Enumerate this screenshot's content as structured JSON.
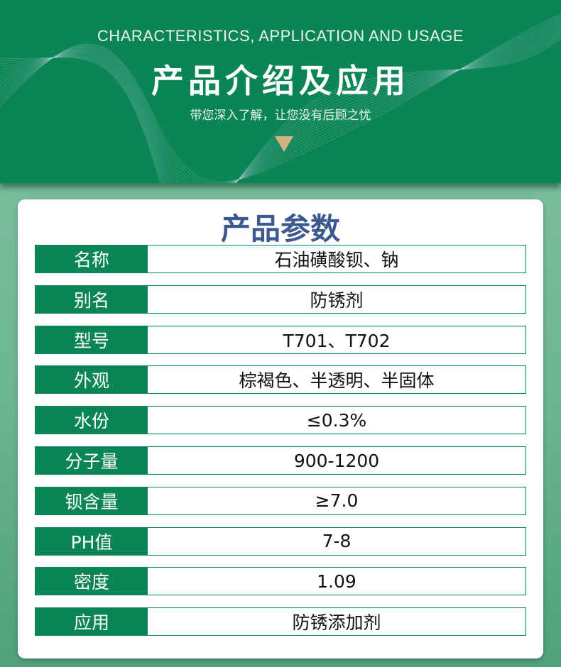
{
  "banner": {
    "subtitle_en": "CHARACTERISTICS, APPLICATION AND USAGE",
    "title": "产品介绍及应用",
    "tagline": "带您深入了解，让您没有后顾之忧",
    "accent_color": "#0b8456",
    "arrow_color": "#d3b285"
  },
  "params": {
    "title": "产品参数",
    "rows": [
      {
        "label": "名称",
        "value": "石油磺酸钡、钠"
      },
      {
        "label": "别名",
        "value": "防锈剂"
      },
      {
        "label": "型号",
        "value": "T701、T702"
      },
      {
        "label": "外观",
        "value": "棕褐色、半透明、半固体"
      },
      {
        "label": "水份",
        "value": "≤0.3%"
      },
      {
        "label": "分子量",
        "value": "900-1200"
      },
      {
        "label": "钡含量",
        "value": "≥7.0"
      },
      {
        "label": "PH值",
        "value": "7-8"
      },
      {
        "label": "密度",
        "value": "1.09"
      },
      {
        "label": "应用",
        "value": "防锈添加剂"
      }
    ]
  }
}
